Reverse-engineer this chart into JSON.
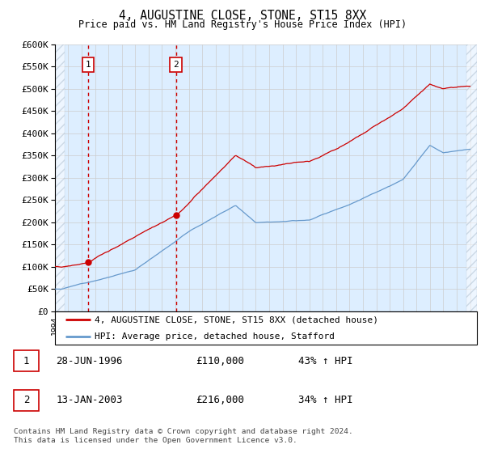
{
  "title": "4, AUGUSTINE CLOSE, STONE, ST15 8XX",
  "subtitle": "Price paid vs. HM Land Registry's House Price Index (HPI)",
  "ylim": [
    0,
    600000
  ],
  "xlim_start": 1994.0,
  "xlim_end": 2025.5,
  "purchase1_date": 1996.49,
  "purchase1_price": 110000,
  "purchase2_date": 2003.04,
  "purchase2_price": 216000,
  "legend_label_red": "4, AUGUSTINE CLOSE, STONE, ST15 8XX (detached house)",
  "legend_label_blue": "HPI: Average price, detached house, Stafford",
  "footnote": "Contains HM Land Registry data © Crown copyright and database right 2024.\nThis data is licensed under the Open Government Licence v3.0.",
  "table_rows": [
    {
      "num": "1",
      "date": "28-JUN-1996",
      "price": "£110,000",
      "change": "43% ↑ HPI"
    },
    {
      "num": "2",
      "date": "13-JAN-2003",
      "price": "£216,000",
      "change": "34% ↑ HPI"
    }
  ],
  "red_color": "#cc0000",
  "blue_color": "#6699cc",
  "grid_color": "#cccccc",
  "bg_plot": "#ddeeff"
}
